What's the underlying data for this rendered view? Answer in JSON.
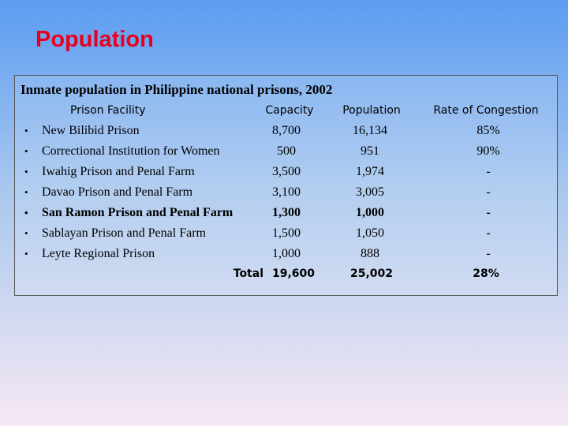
{
  "header": {
    "title": "Population"
  },
  "table": {
    "caption": "Inmate population in Philippine national prisons, 2002",
    "columns": [
      "Prison Facility",
      "Capacity",
      "Population",
      "Rate of Congestion"
    ],
    "rows": [
      [
        "New Bilibid Prison",
        "8,700",
        "16,134",
        "85%"
      ],
      [
        "Correctional Institution for Women",
        "500",
        "951",
        "90%"
      ],
      [
        "Iwahig Prison and Penal Farm",
        "3,500",
        "1,974",
        "-"
      ],
      [
        "Davao Prison and Penal Farm",
        "3,100",
        "3,005",
        "-"
      ],
      [
        "San Ramon Prison and Penal Farm",
        "1,300",
        "1,000",
        "-"
      ],
      [
        "Sablayan Prison and Penal Farm",
        "1,500",
        "1,050",
        "-"
      ],
      [
        "Leyte Regional Prison",
        "1,000",
        "888",
        "-"
      ]
    ],
    "total": [
      "Total",
      "19,600",
      "25,002",
      "28%"
    ]
  }
}
